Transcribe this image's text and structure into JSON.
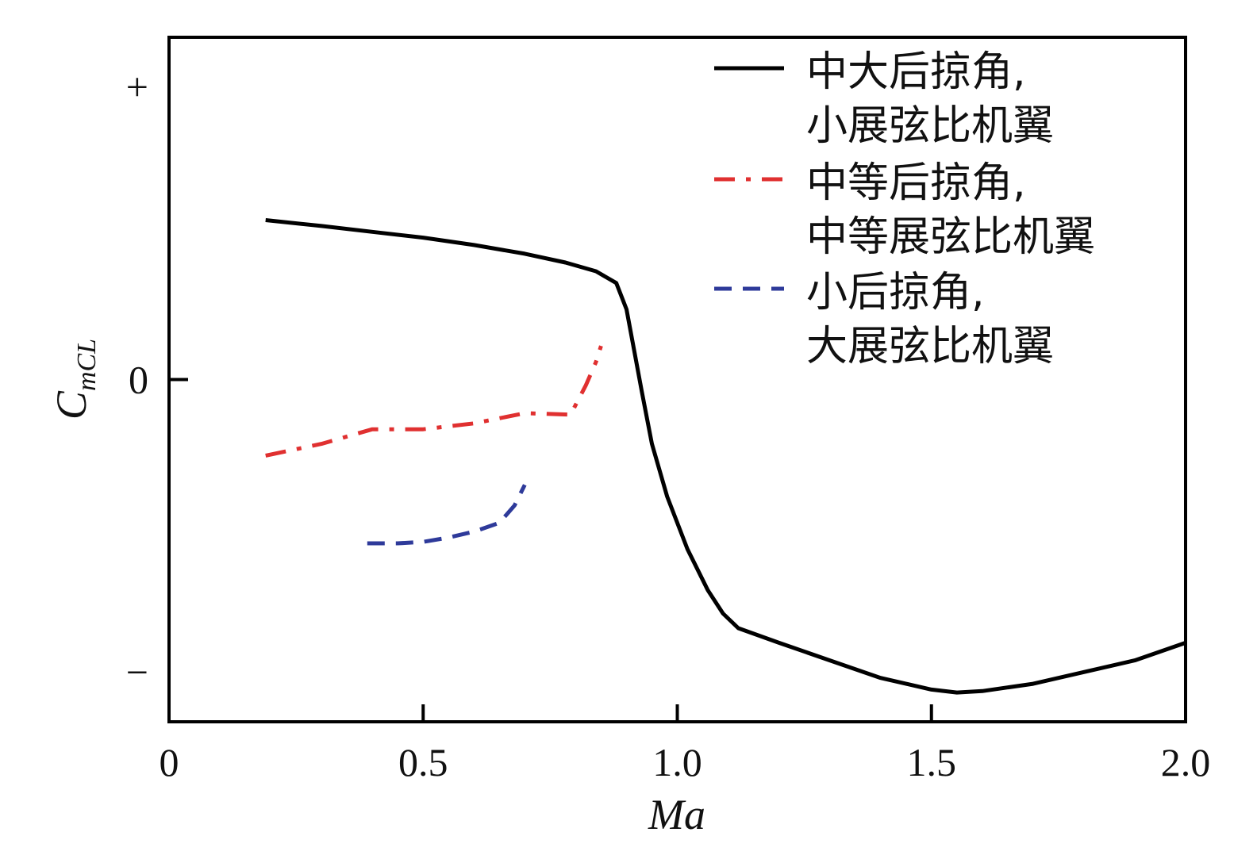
{
  "chart_data": {
    "type": "line",
    "xlabel": "Ma",
    "ylabel": {
      "main": "C",
      "sub": "mCL"
    },
    "xlim": [
      0,
      2.0
    ],
    "ylim": [
      -1.17,
      1.17
    ],
    "x_ticks": [
      {
        "value": 0,
        "label": "0"
      },
      {
        "value": 0.5,
        "label": "0.5"
      },
      {
        "value": 1.0,
        "label": "1.0"
      },
      {
        "value": 1.5,
        "label": "1.5"
      },
      {
        "value": 2.0,
        "label": "2.0"
      }
    ],
    "y_ticks": [
      {
        "value": 1,
        "label": "+"
      },
      {
        "value": 0,
        "label": "0"
      },
      {
        "value": -1,
        "label": "−"
      }
    ],
    "grid": false,
    "legend_position": "top-right",
    "series": [
      {
        "name_lines": [
          "中大后掠角,",
          "小展弦比机翼"
        ],
        "color": "#000000",
        "style": "solid",
        "x": [
          0.19,
          0.3,
          0.4,
          0.5,
          0.6,
          0.7,
          0.78,
          0.84,
          0.88,
          0.9,
          0.915,
          0.93,
          0.95,
          0.98,
          1.02,
          1.06,
          1.09,
          1.12,
          1.2,
          1.3,
          1.4,
          1.5,
          1.55,
          1.6,
          1.7,
          1.8,
          1.9,
          2.0
        ],
        "y": [
          0.545,
          0.525,
          0.505,
          0.485,
          0.46,
          0.43,
          0.4,
          0.37,
          0.33,
          0.24,
          0.1,
          -0.04,
          -0.22,
          -0.4,
          -0.58,
          -0.72,
          -0.8,
          -0.85,
          -0.9,
          -0.96,
          -1.02,
          -1.06,
          -1.07,
          -1.065,
          -1.04,
          -1.0,
          -0.96,
          -0.9
        ]
      },
      {
        "name_lines": [
          "中等后掠角,",
          "中等展弦比机翼"
        ],
        "color": "#e03030",
        "style": "dash-dot",
        "x": [
          0.19,
          0.3,
          0.4,
          0.5,
          0.6,
          0.7,
          0.79,
          0.82,
          0.84,
          0.85
        ],
        "y": [
          -0.26,
          -0.22,
          -0.17,
          -0.17,
          -0.15,
          -0.115,
          -0.12,
          -0.02,
          0.06,
          0.115
        ]
      },
      {
        "name_lines": [
          "小后掠角,",
          "大展弦比机翼"
        ],
        "color": "#2e3a9a",
        "style": "dash",
        "x": [
          0.39,
          0.45,
          0.5,
          0.55,
          0.6,
          0.65,
          0.68,
          0.7
        ],
        "y": [
          -0.56,
          -0.56,
          -0.555,
          -0.54,
          -0.52,
          -0.49,
          -0.43,
          -0.36
        ]
      }
    ]
  }
}
